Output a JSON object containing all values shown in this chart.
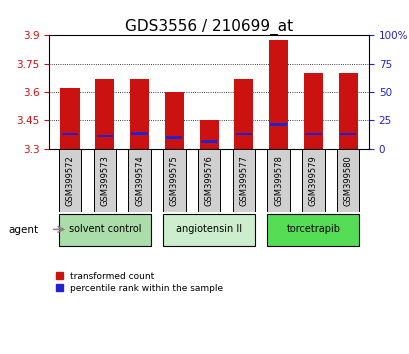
{
  "title": "GDS3556 / 210699_at",
  "samples": [
    "GSM399572",
    "GSM399573",
    "GSM399574",
    "GSM399575",
    "GSM399576",
    "GSM399577",
    "GSM399578",
    "GSM399579",
    "GSM399580"
  ],
  "transformed_counts": [
    3.62,
    3.67,
    3.67,
    3.6,
    3.45,
    3.67,
    3.875,
    3.7,
    3.7
  ],
  "percentile_values": [
    3.37,
    3.36,
    3.375,
    3.35,
    3.33,
    3.37,
    3.42,
    3.37,
    3.37
  ],
  "ymin": 3.3,
  "ymax": 3.9,
  "yticks_left": [
    3.3,
    3.45,
    3.6,
    3.75,
    3.9
  ],
  "yticks_right_labels": [
    "0",
    "25",
    "50",
    "75",
    "100%"
  ],
  "bar_color": "#cc1111",
  "blue_color": "#2222cc",
  "group_info": [
    {
      "label": "solvent control",
      "start": 0,
      "end": 2,
      "color": "#aaddaa"
    },
    {
      "label": "angiotensin II",
      "start": 3,
      "end": 5,
      "color": "#cceecc"
    },
    {
      "label": "torcetrapib",
      "start": 6,
      "end": 8,
      "color": "#55dd55"
    }
  ],
  "agent_label": "agent",
  "legend_red_label": "transformed count",
  "legend_blue_label": "percentile rank within the sample",
  "bar_width": 0.55,
  "background_color": "#ffffff",
  "tick_color_left": "#cc1111",
  "tick_color_right": "#2222cc",
  "title_fontsize": 11,
  "tick_fontsize": 7.5,
  "sample_fontsize": 6,
  "group_fontsize": 7,
  "legend_fontsize": 6.5,
  "grid_yticks": [
    3.45,
    3.6,
    3.75
  ]
}
